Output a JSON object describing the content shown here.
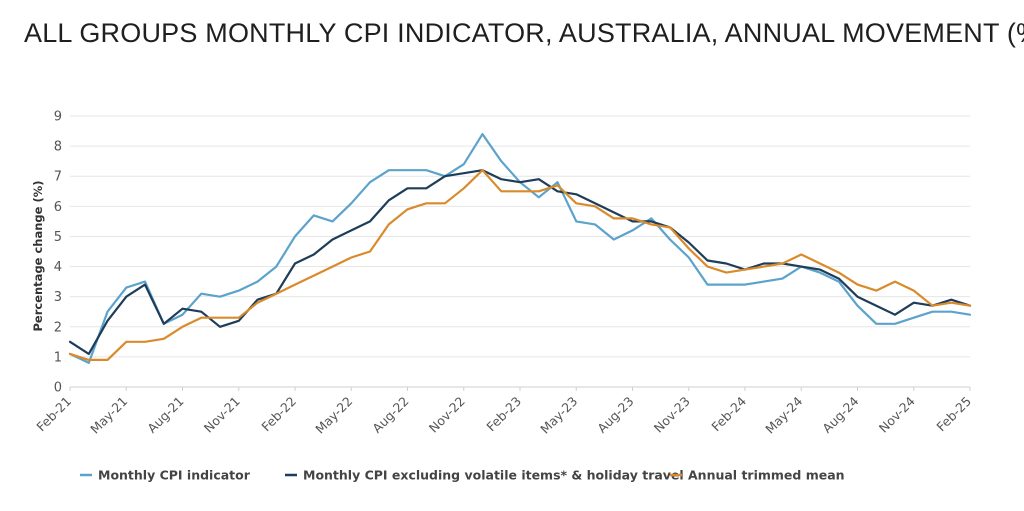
{
  "title": "ALL GROUPS MONTHLY CPI INDICATOR, AUSTRALIA, ANNUAL MOVEMENT (%)",
  "chart_data": {
    "type": "line",
    "title": "ALL GROUPS MONTHLY CPI INDICATOR, AUSTRALIA, ANNUAL MOVEMENT (%)",
    "xlabel": "",
    "ylabel": "Percentage change (%)",
    "ylim": [
      0,
      9
    ],
    "yticks": [
      0,
      1,
      2,
      3,
      4,
      5,
      6,
      7,
      8,
      9
    ],
    "grid": true,
    "legend_position": "bottom",
    "x": [
      "Feb-21",
      "Mar-21",
      "Apr-21",
      "May-21",
      "Jun-21",
      "Jul-21",
      "Aug-21",
      "Sep-21",
      "Oct-21",
      "Nov-21",
      "Dec-21",
      "Jan-22",
      "Feb-22",
      "Mar-22",
      "Apr-22",
      "May-22",
      "Jun-22",
      "Jul-22",
      "Aug-22",
      "Sep-22",
      "Oct-22",
      "Nov-22",
      "Dec-22",
      "Jan-23",
      "Feb-23",
      "Mar-23",
      "Apr-23",
      "May-23",
      "Jun-23",
      "Jul-23",
      "Aug-23",
      "Sep-23",
      "Oct-23",
      "Nov-23",
      "Dec-23",
      "Jan-24",
      "Feb-24",
      "Mar-24",
      "Apr-24",
      "May-24",
      "Jun-24",
      "Jul-24",
      "Aug-24",
      "Sep-24",
      "Oct-24",
      "Nov-24",
      "Dec-24",
      "Jan-25",
      "Feb-25"
    ],
    "x_tick_labels": [
      "Feb-21",
      "May-21",
      "Aug-21",
      "Nov-21",
      "Feb-22",
      "May-22",
      "Aug-22",
      "Nov-22",
      "Feb-23",
      "May-23",
      "Aug-23",
      "Nov-23",
      "Feb-24",
      "May-24",
      "Aug-24",
      "Nov-24",
      "Feb-25"
    ],
    "series": [
      {
        "name": "Monthly CPI indicator",
        "color": "#5ba3cc",
        "values": [
          1.1,
          0.8,
          2.5,
          3.3,
          3.5,
          2.1,
          2.4,
          3.1,
          3.0,
          3.2,
          3.5,
          4.0,
          5.0,
          5.7,
          5.5,
          6.1,
          6.8,
          7.2,
          7.2,
          7.2,
          7.0,
          7.4,
          8.4,
          7.5,
          6.8,
          6.3,
          6.8,
          5.5,
          5.4,
          4.9,
          5.2,
          5.6,
          4.9,
          4.3,
          3.4,
          3.4,
          3.4,
          3.5,
          3.6,
          4.0,
          3.8,
          3.5,
          2.7,
          2.1,
          2.1,
          2.3,
          2.5,
          2.5,
          2.4
        ]
      },
      {
        "name": "Monthly CPI excluding volatile items* & holiday travel",
        "color": "#1e3d59",
        "values": [
          1.5,
          1.1,
          2.2,
          3.0,
          3.4,
          2.1,
          2.6,
          2.5,
          2.0,
          2.2,
          2.9,
          3.1,
          4.1,
          4.4,
          4.9,
          5.2,
          5.5,
          6.2,
          6.6,
          6.6,
          7.0,
          7.1,
          7.2,
          6.9,
          6.8,
          6.9,
          6.5,
          6.4,
          6.1,
          5.8,
          5.5,
          5.5,
          5.3,
          4.8,
          4.2,
          4.1,
          3.9,
          4.1,
          4.1,
          4.0,
          3.9,
          3.6,
          3.0,
          2.7,
          2.4,
          2.8,
          2.7,
          2.9,
          2.7
        ]
      },
      {
        "name": "Annual trimmed mean",
        "color": "#d98b2b",
        "values": [
          1.1,
          0.9,
          0.9,
          1.5,
          1.5,
          1.6,
          2.0,
          2.3,
          2.3,
          2.3,
          2.8,
          3.1,
          3.4,
          3.7,
          4.0,
          4.3,
          4.5,
          5.4,
          5.9,
          6.1,
          6.1,
          6.6,
          7.2,
          6.5,
          6.5,
          6.5,
          6.7,
          6.1,
          6.0,
          5.6,
          5.6,
          5.4,
          5.3,
          4.6,
          4.0,
          3.8,
          3.9,
          4.0,
          4.1,
          4.4,
          4.1,
          3.8,
          3.4,
          3.2,
          3.5,
          3.2,
          2.7,
          2.8,
          2.7
        ]
      }
    ]
  }
}
